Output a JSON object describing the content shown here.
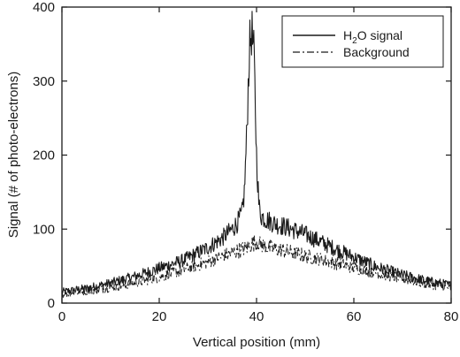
{
  "chart_data": {
    "type": "line",
    "xlabel": "Vertical position (mm)",
    "ylabel": "Signal (# of photo-electrons)",
    "xlim": [
      0,
      80
    ],
    "ylim": [
      0,
      400
    ],
    "x_ticks": [
      0,
      20,
      40,
      60,
      80
    ],
    "y_ticks": [
      0,
      100,
      200,
      300,
      400
    ],
    "grid": false,
    "legend_position": "top-right",
    "series": [
      {
        "name": "H2O signal",
        "legend_label": {
          "main": "H",
          "sub": "2",
          "rest": "O signal"
        },
        "style": "solid",
        "color": "#1a1a1a",
        "x": [
          0,
          5,
          10,
          15,
          20,
          25,
          30,
          33,
          35,
          36,
          37,
          37.5,
          38,
          38.5,
          39,
          39.5,
          40,
          40.5,
          41,
          42,
          44,
          46,
          50,
          55,
          60,
          65,
          70,
          75,
          80
        ],
        "y": [
          15,
          20,
          27,
          36,
          47,
          58,
          75,
          88,
          100,
          108,
          120,
          150,
          230,
          340,
          370,
          330,
          200,
          130,
          118,
          113,
          107,
          103,
          93,
          77,
          62,
          48,
          38,
          30,
          24
        ]
      },
      {
        "name": "Background",
        "style": "dash-dot",
        "color": "#1a1a1a",
        "x": [
          0,
          5,
          10,
          15,
          20,
          25,
          30,
          35,
          38,
          39,
          40,
          42,
          45,
          50,
          55,
          60,
          65,
          70,
          75,
          80
        ],
        "y": [
          12,
          16,
          21,
          27,
          35,
          45,
          56,
          68,
          75,
          80,
          82,
          76,
          72,
          64,
          56,
          48,
          40,
          33,
          26,
          20
        ]
      }
    ]
  }
}
